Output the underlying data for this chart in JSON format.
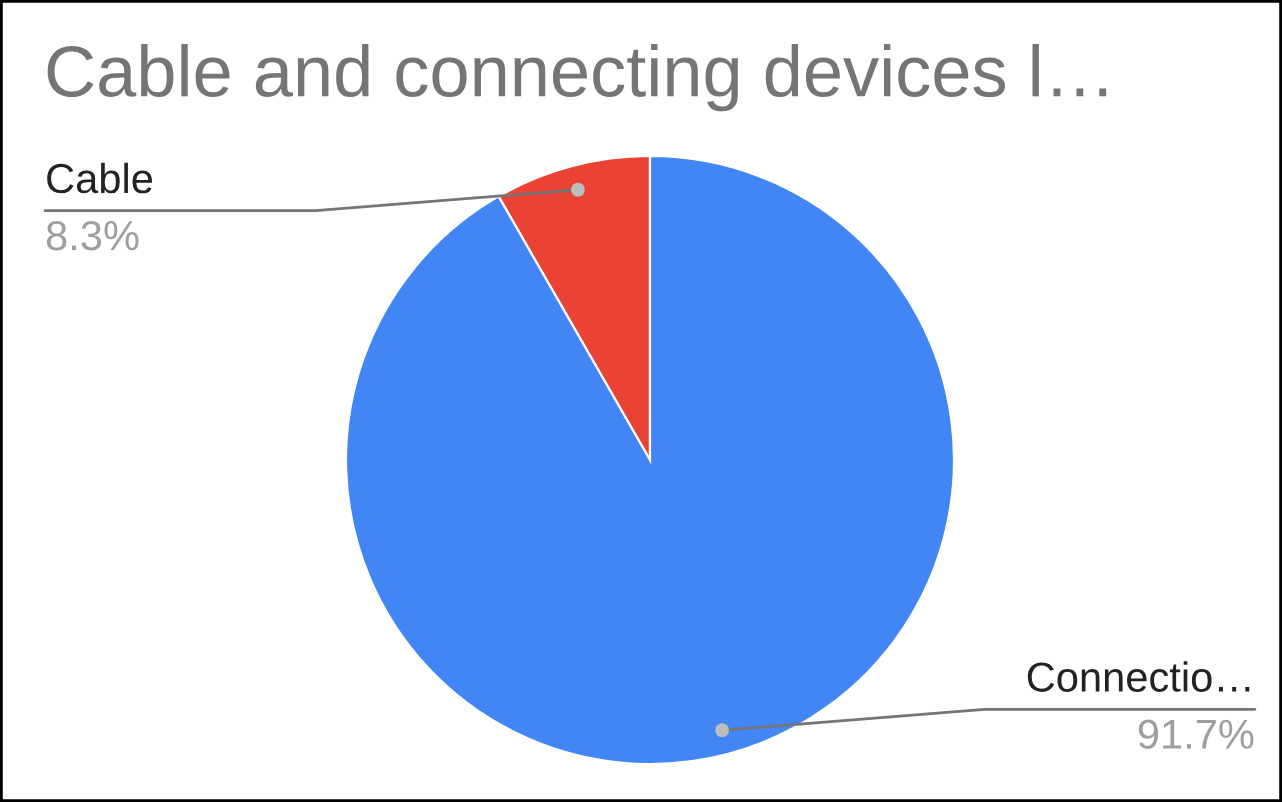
{
  "chart_data": {
    "type": "pie",
    "title": "Cable and connecting devices l…",
    "categories": [
      "Cable",
      "Connectio…"
    ],
    "values": [
      8.3,
      91.7
    ],
    "colors": [
      "#ea4335",
      "#4285f4"
    ],
    "value_labels": [
      "8.3%",
      "91.7%"
    ]
  }
}
